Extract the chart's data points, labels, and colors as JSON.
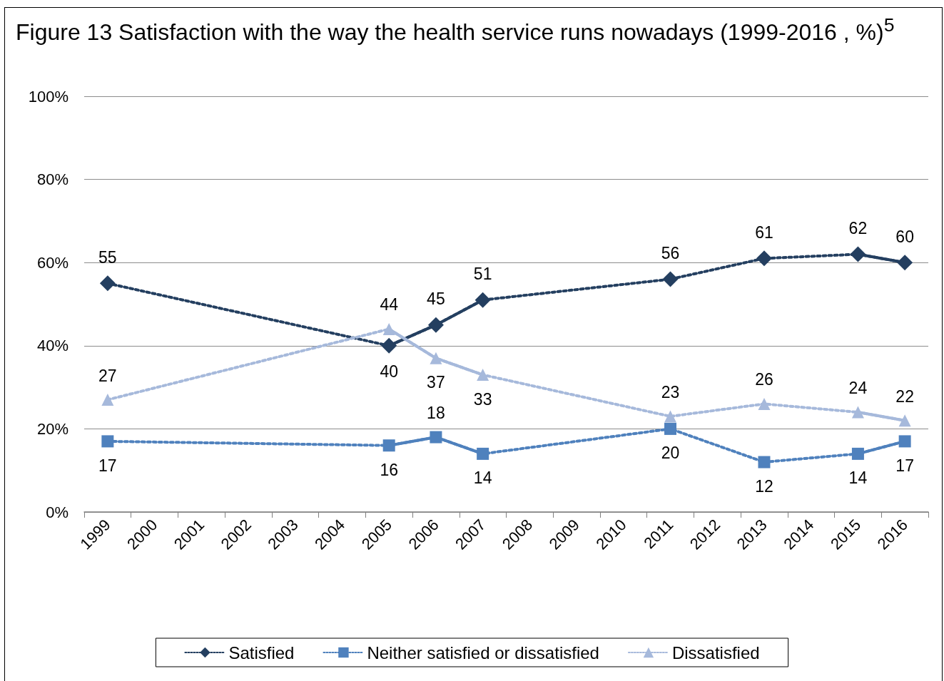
{
  "chart_data": {
    "type": "line",
    "title": "Figure 13   Satisfaction with the way the health service runs nowadays (1999-2016 , %)$^{5}$",
    "categories": [
      "1999",
      "2000",
      "2001",
      "2002",
      "2003",
      "2004",
      "2005",
      "2006",
      "2007",
      "2008",
      "2009",
      "2010",
      "2011",
      "2012",
      "2013",
      "2014",
      "2015",
      "2016"
    ],
    "series": [
      {
        "name": "Satisfied",
        "color": "#243f60",
        "marker": "diamond",
        "values": [
          55,
          null,
          null,
          null,
          null,
          null,
          40,
          45,
          51,
          null,
          null,
          null,
          56,
          null,
          61,
          null,
          62,
          60
        ]
      },
      {
        "name": "Neither satisfied or dissatisfied",
        "color": "#4f81bd",
        "marker": "square",
        "values": [
          17,
          null,
          null,
          null,
          null,
          null,
          16,
          18,
          14,
          null,
          null,
          null,
          20,
          null,
          12,
          null,
          14,
          17
        ]
      },
      {
        "name": "Dissatisfied",
        "color": "#a6b9db",
        "marker": "triangle",
        "values": [
          27,
          null,
          null,
          null,
          null,
          null,
          44,
          37,
          33,
          null,
          null,
          null,
          23,
          null,
          26,
          null,
          24,
          22
        ]
      }
    ],
    "ylim": [
      0,
      100
    ],
    "yticks": [
      {
        "value": 0,
        "label": "0%"
      },
      {
        "value": 20,
        "label": "20%"
      },
      {
        "value": 40,
        "label": "40%"
      },
      {
        "value": 60,
        "label": "60%"
      },
      {
        "value": 80,
        "label": "80%"
      },
      {
        "value": 100,
        "label": "100%"
      }
    ],
    "grid": "y",
    "legend": "bottom",
    "data_labels": true,
    "line_style": "dotted"
  }
}
